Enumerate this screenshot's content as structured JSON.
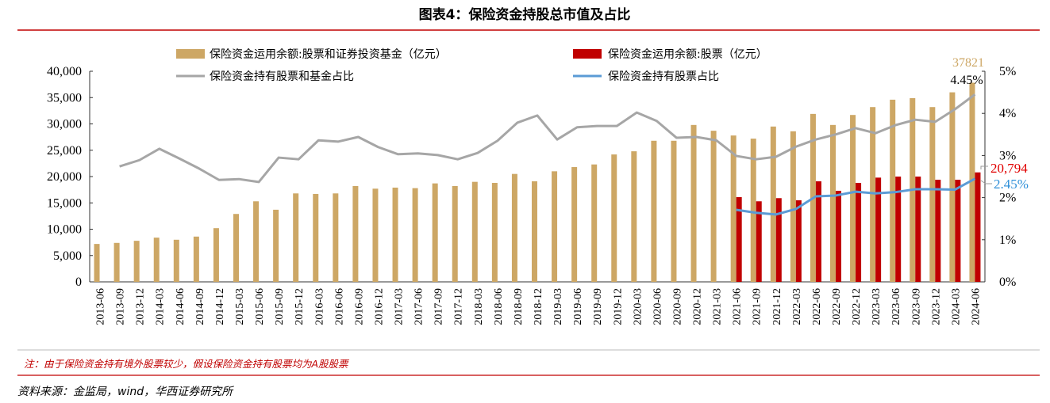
{
  "chart_data": {
    "type": "bar",
    "title": "图表4：保险资金持股总市值及占比",
    "categories": [
      "2013-06",
      "2013-09",
      "2013-12",
      "2014-03",
      "2014-06",
      "2014-09",
      "2014-12",
      "2015-03",
      "2015-06",
      "2015-09",
      "2015-12",
      "2016-03",
      "2016-06",
      "2016-09",
      "2016-12",
      "2017-03",
      "2017-06",
      "2017-09",
      "2017-12",
      "2018-03",
      "2018-06",
      "2018-09",
      "2018-12",
      "2019-03",
      "2019-06",
      "2019-09",
      "2019-12",
      "2020-03",
      "2020-06",
      "2020-09",
      "2020-12",
      "2021-03",
      "2021-06",
      "2021-09",
      "2021-12",
      "2022-03",
      "2022-06",
      "2022-09",
      "2022-12",
      "2023-03",
      "2023-06",
      "2023-09",
      "2023-12",
      "2024-03",
      "2024-06"
    ],
    "series": [
      {
        "name": "保险资金运用余额:股票和证券投资基金（亿元）",
        "type": "bar",
        "axis": "left",
        "color": "#CDA765",
        "values": [
          7200,
          7400,
          7800,
          8400,
          8000,
          8600,
          10200,
          12900,
          15300,
          13700,
          16800,
          16700,
          16800,
          18200,
          17700,
          17900,
          17800,
          18700,
          18200,
          19000,
          18800,
          20500,
          19100,
          21000,
          21800,
          22300,
          24200,
          24800,
          26800,
          26800,
          29800,
          28700,
          27800,
          27200,
          29500,
          28600,
          31900,
          29800,
          31700,
          33200,
          34600,
          34900,
          33200,
          36000,
          37821
        ]
      },
      {
        "name": "保险资金运用余额:股票（亿元）",
        "type": "bar",
        "axis": "left",
        "color": "#C00000",
        "values": [
          null,
          null,
          null,
          null,
          null,
          null,
          null,
          null,
          null,
          null,
          null,
          null,
          null,
          null,
          null,
          null,
          null,
          null,
          null,
          null,
          null,
          null,
          null,
          null,
          null,
          null,
          null,
          null,
          null,
          null,
          null,
          null,
          16100,
          15300,
          15900,
          15500,
          19100,
          17300,
          18800,
          19800,
          20000,
          20000,
          19400,
          19400,
          20794
        ]
      },
      {
        "name": "保险资金持有股票和基金占比",
        "type": "line",
        "axis": "right",
        "color": "#A6A6A6",
        "values": [
          null,
          2.74,
          2.89,
          3.16,
          2.93,
          2.69,
          2.42,
          2.44,
          2.37,
          2.95,
          2.91,
          3.36,
          3.33,
          3.44,
          3.2,
          3.03,
          3.05,
          3.01,
          2.91,
          3.06,
          3.35,
          3.78,
          3.95,
          3.38,
          3.67,
          3.7,
          3.7,
          4.02,
          3.82,
          3.42,
          3.44,
          3.36,
          2.99,
          2.91,
          2.97,
          3.21,
          3.38,
          3.5,
          3.65,
          3.53,
          3.72,
          3.85,
          3.8,
          4.1,
          4.45
        ]
      },
      {
        "name": "保险资金持有股票占比",
        "type": "line",
        "axis": "right",
        "color": "#5B9BD5",
        "values": [
          null,
          null,
          null,
          null,
          null,
          null,
          null,
          null,
          null,
          null,
          null,
          null,
          null,
          null,
          null,
          null,
          null,
          null,
          null,
          null,
          null,
          null,
          null,
          null,
          null,
          null,
          null,
          null,
          null,
          null,
          null,
          null,
          1.71,
          1.64,
          1.6,
          1.73,
          2.03,
          2.05,
          2.14,
          2.1,
          2.13,
          2.2,
          2.2,
          2.19,
          2.45
        ]
      }
    ],
    "ylim_left": [
      0,
      40000
    ],
    "yticks_left": [
      "0",
      "5,000",
      "10,000",
      "15,000",
      "20,000",
      "25,000",
      "30,000",
      "35,000",
      "40,000"
    ],
    "ylim_right": [
      0,
      5
    ],
    "yticks_right": [
      "0%",
      "1%",
      "2%",
      "3%",
      "4%",
      "5%"
    ],
    "legend_position": "top",
    "annotations": {
      "gold_last": "37821",
      "gray_last": "4.45%",
      "red_last": "20,794",
      "blue_last": "2.45%"
    },
    "grid": false
  },
  "footer": {
    "note": "注：由于保险资金持有境外股票较少，假设保险资金持有股票均为A股股票",
    "source": "资料来源：金监局，wind，华西证券研究所"
  }
}
